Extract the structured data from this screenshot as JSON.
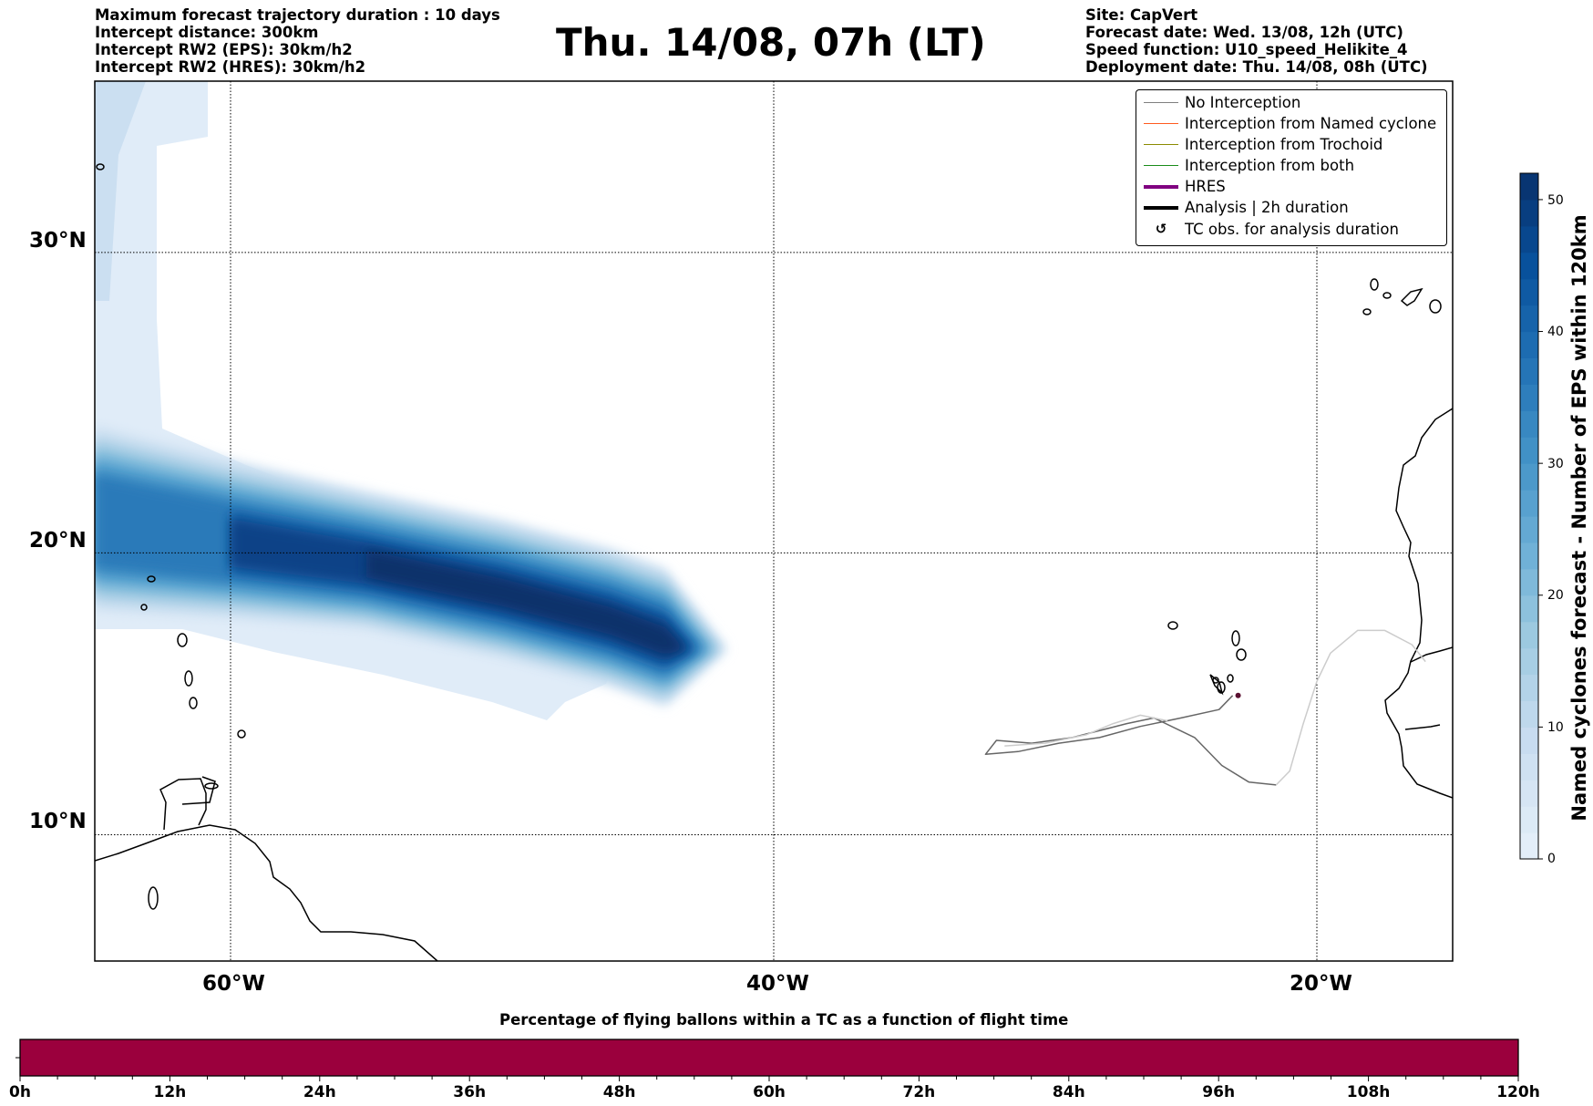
{
  "header": {
    "title": "Thu. 14/08, 07h (LT)",
    "left_lines": [
      "Maximum forecast trajectory duration : 10 days",
      "Intercept distance: 300km",
      "Intercept RW2 (EPS):  30km/h2",
      "Intercept RW2 (HRES): 30km/h2"
    ],
    "right_lines": [
      "Site: CapVert",
      "Forecast date: Wed. 13/08, 12h (UTC)",
      "Speed function: U10_speed_Helikite_4",
      "Deployment date: Thu. 14/08, 08h (UTC)"
    ]
  },
  "legend": {
    "items": [
      {
        "label": "No Interception",
        "color": "#808080",
        "style": "thin"
      },
      {
        "label": "Interception from Named cyclone",
        "color": "#ff5a1f",
        "style": "thin"
      },
      {
        "label": "Interception from Trochoid",
        "color": "#8b8b00",
        "style": "thin"
      },
      {
        "label": "Interception from both",
        "color": "#1a8c1a",
        "style": "thin"
      },
      {
        "label": "HRES",
        "color": "#800080",
        "style": "thick"
      },
      {
        "label": "Analysis | 2h duration",
        "color": "#000000",
        "style": "thick"
      },
      {
        "label": "TC obs. for analysis duration",
        "color": "#000000",
        "style": "marker",
        "icon": "cyclone-icon"
      }
    ]
  },
  "chart_data": [
    {
      "type": "heatmap",
      "title": "Named cyclones forecast - Number of EPS within 120km",
      "map": {
        "lon_range": [
          -65,
          -15
        ],
        "lat_range": [
          5.4,
          35.3
        ],
        "lon_ticks": [
          {
            "value": -60,
            "label": "60°W"
          },
          {
            "value": -40,
            "label": "40°W"
          },
          {
            "value": -20,
            "label": "20°W"
          }
        ],
        "lat_ticks": [
          {
            "value": 30,
            "label": "30°N"
          },
          {
            "value": 20,
            "label": "20°N"
          },
          {
            "value": 10,
            "label": "10°N"
          }
        ],
        "grid": "dotted"
      },
      "colorbar": {
        "label": "Named cyclones forecast - Number of EPS within 120km",
        "range": [
          0,
          52
        ],
        "ticks": [
          0,
          10,
          20,
          30,
          40,
          50
        ],
        "colormap": "Blues",
        "placement": "right"
      },
      "density_track": {
        "description": "EPS named-cyclone density swath moving WNW",
        "core_max_value": 52,
        "core_center": {
          "lon": -44,
          "lat": 16.9
        },
        "axis_points": [
          {
            "lon": -65,
            "lat": 21.0,
            "value": 32
          },
          {
            "lon": -60,
            "lat": 20.3,
            "value": 42
          },
          {
            "lon": -55,
            "lat": 19.6,
            "value": 45
          },
          {
            "lon": -50,
            "lat": 18.6,
            "value": 48
          },
          {
            "lon": -46,
            "lat": 17.6,
            "value": 52
          },
          {
            "lon": -44,
            "lat": 16.9,
            "value": 52
          }
        ]
      },
      "trajectories": [
        {
          "name": "No Interception (EPS member)",
          "color": "#666666",
          "points": [
            [
              -23.1,
              15.0
            ],
            [
              -23.6,
              14.5
            ],
            [
              -25,
              14.2
            ],
            [
              -26.5,
              13.9
            ],
            [
              -28,
              13.5
            ],
            [
              -29.5,
              13.3
            ],
            [
              -31,
              13.0
            ],
            [
              -32.2,
              12.9
            ],
            [
              -31.8,
              13.4
            ],
            [
              -30.5,
              13.3
            ],
            [
              -29,
              13.5
            ],
            [
              -27,
              14.0
            ],
            [
              -26,
              14.2
            ],
            [
              -24.5,
              13.5
            ],
            [
              -23.5,
              12.5
            ],
            [
              -22.5,
              11.9
            ],
            [
              -21.5,
              11.8
            ]
          ]
        },
        {
          "name": "No Interception (EPS member, light)",
          "color": "#cccccc",
          "points": [
            [
              -21.5,
              11.8
            ],
            [
              -21,
              12.3
            ],
            [
              -20.5,
              14.0
            ],
            [
              -20,
              15.5
            ],
            [
              -19.5,
              16.5
            ],
            [
              -18.5,
              17.3
            ],
            [
              -17.5,
              17.3
            ],
            [
              -16.5,
              16.8
            ],
            [
              -16.0,
              16.2
            ]
          ]
        },
        {
          "name": "No Interception (EPS member, light 2)",
          "color": "#cccccc",
          "points": [
            [
              -31.5,
              13.2
            ],
            [
              -30,
              13.3
            ],
            [
              -28.5,
              13.6
            ],
            [
              -27.5,
              14.0
            ],
            [
              -26.5,
              14.3
            ],
            [
              -25.5,
              14.1
            ]
          ]
        }
      ],
      "site_marker": {
        "name": "CapVert",
        "lon": -22.9,
        "lat": 15.0
      }
    },
    {
      "type": "bar",
      "title": "Percentage of flying ballons within a TC as a function of flight time",
      "x_ticks": [
        "0h",
        "12h",
        "24h",
        "36h",
        "48h",
        "60h",
        "72h",
        "84h",
        "96h",
        "108h",
        "120h"
      ],
      "x_range_hours": [
        0,
        120
      ],
      "minor_tick_step_hours": 3,
      "segments": [
        {
          "start_h": 0,
          "end_h": 120,
          "color": "#9b003d"
        }
      ]
    }
  ]
}
